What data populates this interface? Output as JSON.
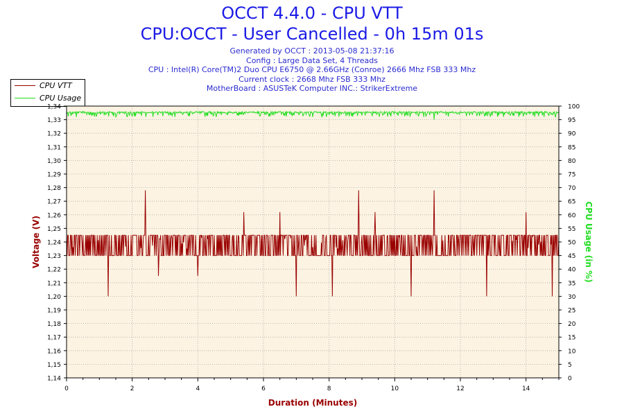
{
  "chart_data": {
    "type": "line",
    "title": "OCCT 4.4.0 - CPU VTT",
    "subtitle": "CPU:OCCT - User Cancelled - 0h 15m 01s",
    "info_lines": [
      "Generated by OCCT : 2013-05-08 21:37:16",
      "Config : Large Data Set, 4 Threads",
      "CPU : Intel(R) Core(TM)2 Duo CPU E6750 @ 2.66GHz (Conroe) 2666 Mhz FSB 333 Mhz",
      "Current clock : 2668 Mhz FSB 333 Mhz",
      "MotherBoard : ASUSTeK Computer INC.: StrikerExtreme"
    ],
    "xlabel": "Duration (Minutes)",
    "ylabel": "Voltage (V)",
    "y2label": "CPU Usage (in %)",
    "xlim": [
      0,
      15
    ],
    "ylim": [
      1.14,
      1.34
    ],
    "y2lim": [
      0,
      100
    ],
    "x_ticks": [
      "0",
      "2",
      "4",
      "6",
      "8",
      "10",
      "12",
      "14"
    ],
    "y_ticks": [
      "1,14",
      "1,15",
      "1,16",
      "1,17",
      "1,18",
      "1,19",
      "1,20",
      "1,21",
      "1,22",
      "1,23",
      "1,24",
      "1,25",
      "1,26",
      "1,27",
      "1,28",
      "1,29",
      "1,30",
      "1,31",
      "1,32",
      "1,33",
      "1,34"
    ],
    "y2_ticks": [
      "0",
      "5",
      "10",
      "15",
      "20",
      "25",
      "30",
      "35",
      "40",
      "45",
      "50",
      "55",
      "60",
      "65",
      "70",
      "75",
      "80",
      "85",
      "90",
      "95",
      "100"
    ],
    "grid": true,
    "legend_position": "top-left",
    "series": [
      {
        "name": "CPU VTT",
        "color": "#990000",
        "axis": "left",
        "baseline": 1.23,
        "high": 1.245,
        "spikes_up": [
          [
            2.4,
            1.278
          ],
          [
            4.0,
            1.262
          ],
          [
            5.4,
            1.262
          ],
          [
            6.5,
            1.262
          ],
          [
            8.9,
            1.278
          ],
          [
            9.4,
            1.262
          ],
          [
            11.2,
            1.278
          ],
          [
            14.0,
            1.262
          ]
        ],
        "spikes_down": [
          [
            1.27,
            1.2
          ],
          [
            2.8,
            1.215
          ],
          [
            4.0,
            1.215
          ],
          [
            7.0,
            1.2
          ],
          [
            8.1,
            1.2
          ],
          [
            10.5,
            1.2
          ],
          [
            12.8,
            1.2
          ],
          [
            14.8,
            1.2
          ]
        ]
      },
      {
        "name": "CPU Usage",
        "color": "#22dd22",
        "axis": "right",
        "level": 98,
        "dips": [
          [
            0.3,
            96
          ],
          [
            1.5,
            96
          ],
          [
            3.3,
            96
          ],
          [
            7.5,
            96
          ],
          [
            11.2,
            95
          ],
          [
            14.9,
            96
          ]
        ]
      }
    ]
  }
}
